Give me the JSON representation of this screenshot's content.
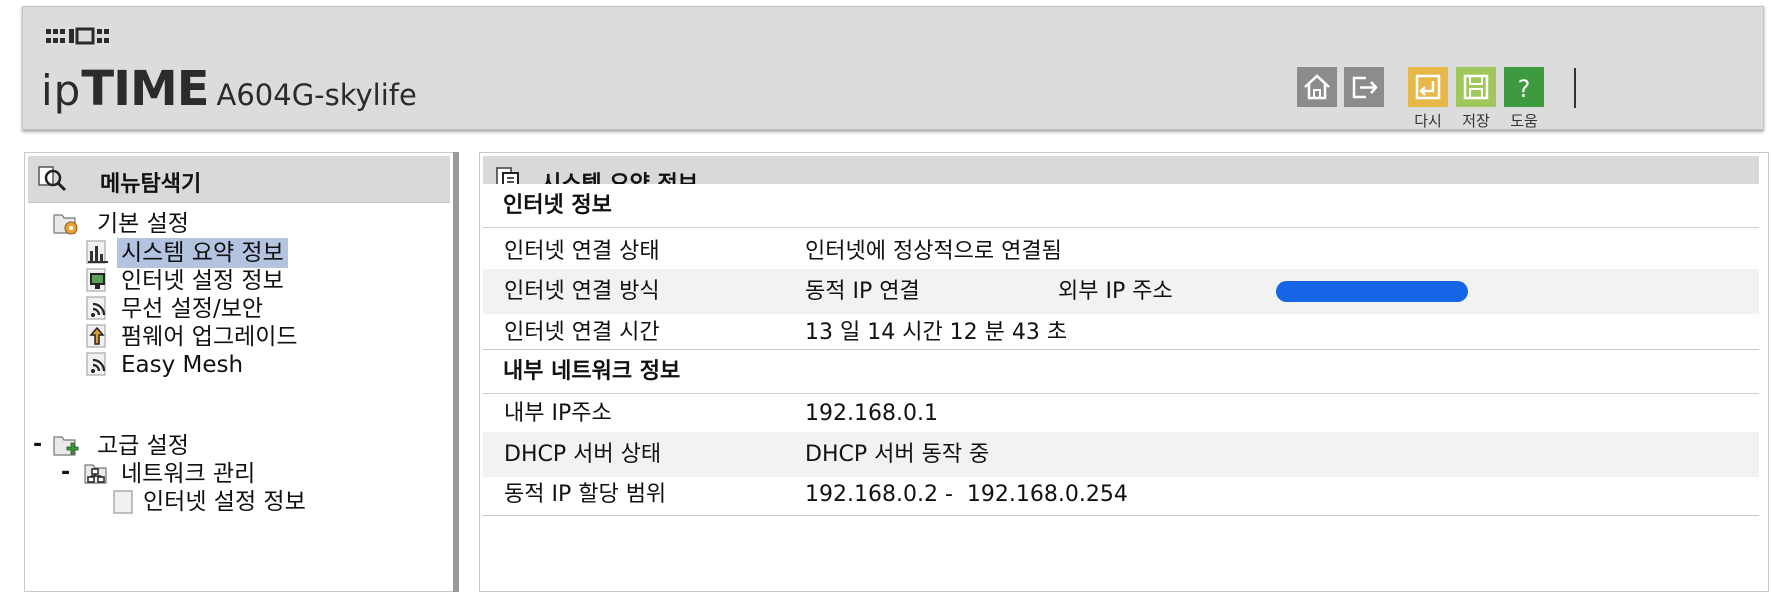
{
  "header": {
    "brand_ip": "ip",
    "brand_time": "TIME",
    "model": "A604G-skylife",
    "buttons": {
      "home_icon": "home-icon",
      "logout_icon": "logout-icon",
      "reload_label": "다시",
      "save_label": "저장",
      "help_label": "도움"
    },
    "colors": {
      "reload": "#e6b84a",
      "save": "#9fc75a",
      "help": "#3e9a3e",
      "gray_btn": "#8c8c8c"
    }
  },
  "sidebar": {
    "title": "메뉴탐색기",
    "basic": {
      "label": "기본 설정",
      "items": [
        {
          "label": "시스템 요약 정보",
          "selected": true,
          "icon": "bar-chart-icon"
        },
        {
          "label": "인터넷 설정 정보",
          "icon": "monitor-icon"
        },
        {
          "label": "무선 설정/보안",
          "icon": "wireless-icon"
        },
        {
          "label": "펌웨어 업그레이드",
          "icon": "upgrade-icon"
        },
        {
          "label": "Easy Mesh",
          "icon": "wireless-icon"
        }
      ]
    },
    "advanced": {
      "collapse_sign": "-",
      "label": "고급 설정",
      "network": {
        "collapse_sign": "-",
        "label": "네트워크 관리",
        "items": [
          {
            "label": "인터넷 설정 정보"
          }
        ]
      }
    }
  },
  "main": {
    "title": "시스템 요약 정보",
    "internet_section": {
      "title": "인터넷 정보",
      "rows": [
        {
          "label": "인터넷 연결 상태",
          "value": "인터넷에 정상적으로 연결됨"
        },
        {
          "label": "인터넷 연결 방식",
          "value": "동적 IP 연결",
          "extra_label": "외부 IP 주소",
          "extra_value_redacted": true
        },
        {
          "label": "인터넷 연결 시간",
          "value": "13 일 14 시간 12 분 43 초"
        }
      ]
    },
    "lan_section": {
      "title": "내부 네트워크 정보",
      "rows": [
        {
          "label": "내부 IP주소",
          "value": "192.168.0.1"
        },
        {
          "label": "DHCP 서버 상태",
          "value": "DHCP 서버 동작 중"
        },
        {
          "label": "동적 IP 할당 범위",
          "value": "192.168.0.2 -  192.168.0.254"
        }
      ]
    }
  }
}
